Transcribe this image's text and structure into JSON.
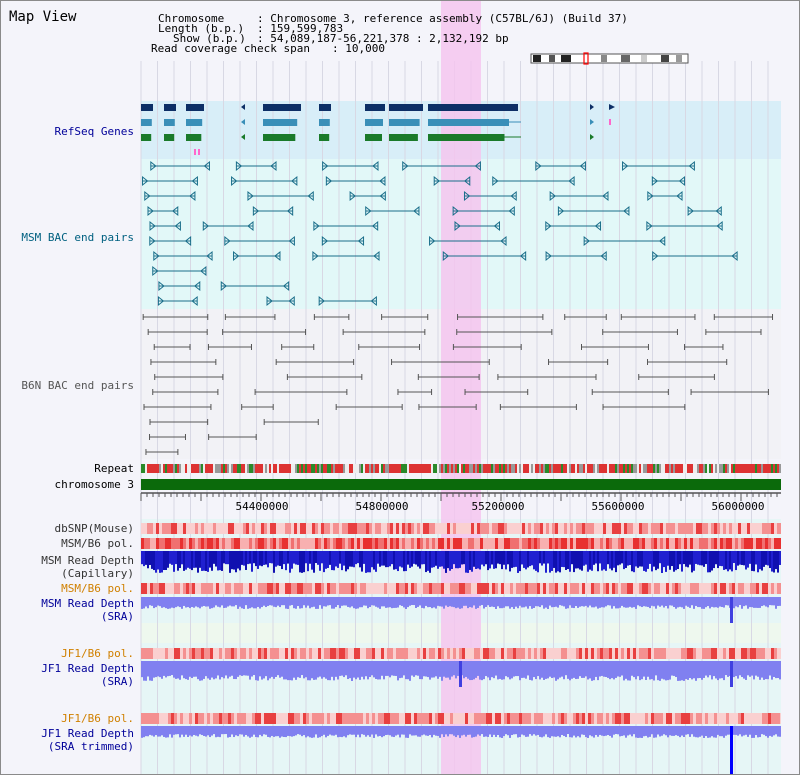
{
  "title": "Map View",
  "info": {
    "chromosome_label": "Chromosome",
    "chromosome_value": ": Chromosome 3, reference assembly (C57BL/6J) (Build 37)",
    "length_label": "Length (b.p.)",
    "length_value": ": 159,599,783",
    "show_label": "Show (b.p.)",
    "show_value": ": 54,089,187-56,221,378 : 2,132,192 bp",
    "coverage_label": "Read coverage check span",
    "coverage_value": ": 10,000"
  },
  "tracks": {
    "refseq": "RefSeq Genes",
    "msm_bac": "MSM BAC end pairs",
    "b6n_bac": "B6N BAC end pairs",
    "repeat": "Repeat",
    "chromosome": "chromosome 3",
    "dbsnp": "dbSNP(Mouse)",
    "msm_pol1": "MSM/B6 pol.",
    "msm_depth_cap_1": "MSM Read Depth",
    "msm_depth_cap_2": "(Capillary)",
    "msm_pol2": "MSM/B6 pol.",
    "msm_depth_sra_1": "MSM Read Depth",
    "msm_depth_sra_2": "(SRA)",
    "jf1_pol1": "JF1/B6 pol.",
    "jf1_depth_1": "JF1 Read Depth",
    "jf1_depth_2": "(SRA)",
    "jf1_pol2": "JF1/B6 pol.",
    "jf1_trim_1": "JF1 Read Depth",
    "jf1_trim_2": "(SRA trimmed)"
  },
  "axis": {
    "ticks": [
      "54400000",
      "54800000",
      "55200000",
      "55600000",
      "56000000"
    ]
  },
  "colors": {
    "refseq_bg": "#d8eef8",
    "gene_dark": "#0d2f66",
    "gene_mid": "#3a8fb8",
    "gene_green": "#1a7a2a",
    "msm_line": "#1a6e8a",
    "b6n_line": "#555555",
    "highlight": "#f5c6ef",
    "chrom_green": "#0b6a0b",
    "depth_blue": "#2020d0",
    "depth_light": "#8080f0",
    "label_blue": "#000099",
    "label_orange": "#d08000",
    "label_teal": "#006080"
  }
}
